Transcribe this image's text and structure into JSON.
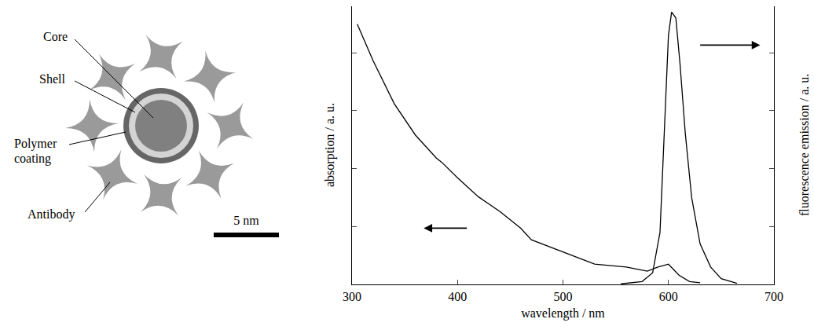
{
  "diagram": {
    "labels": [
      "Core",
      "Shell",
      "Polymer coating",
      "Antibody"
    ],
    "scale_bar": "5 nm"
  },
  "chart_data": {
    "type": "line",
    "x_label": "wavelength / nm",
    "y_label": "absorption / a. u.",
    "y2_label": "fluorescence emission / a. u.",
    "xlim": [
      300,
      700
    ],
    "xticks": [
      300,
      400,
      500,
      600,
      700
    ],
    "ylim": [
      0,
      4.8
    ],
    "yticks": [
      0,
      1,
      2,
      3,
      4
    ],
    "y2lim": [
      0,
      4.8
    ],
    "y2ticks": [
      0,
      1,
      2,
      3,
      4
    ],
    "tick_labels": "x",
    "grid": false,
    "series": [
      {
        "name": "absorption",
        "color": "#000000",
        "x": [
          305,
          320,
          340,
          360,
          380,
          385,
          400,
          420,
          440,
          460,
          470,
          480,
          500,
          520,
          530,
          560,
          580,
          590,
          600,
          610,
          620,
          630
        ],
        "values": [
          4.49,
          3.86,
          3.12,
          2.58,
          2.18,
          2.11,
          1.84,
          1.51,
          1.26,
          0.97,
          0.77,
          0.7,
          0.56,
          0.43,
          0.35,
          0.3,
          0.23,
          0.3,
          0.35,
          0.16,
          0.05,
          0.03
        ]
      },
      {
        "name": "fluorescence emission",
        "color": "#000000",
        "axis": "y2",
        "x": [
          555,
          575,
          585,
          592,
          596,
          600,
          603,
          607,
          611,
          616,
          622,
          630,
          640,
          650,
          665
        ],
        "values": [
          0.01,
          0.05,
          0.2,
          0.9,
          2.6,
          4.3,
          4.7,
          4.6,
          3.8,
          2.6,
          1.5,
          0.7,
          0.3,
          0.1,
          0.02
        ]
      }
    ]
  }
}
